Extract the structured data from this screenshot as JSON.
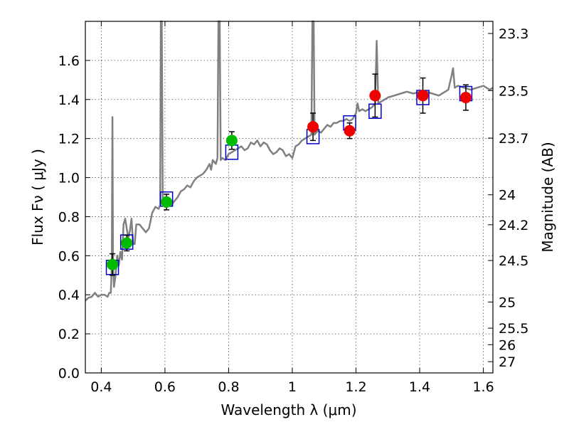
{
  "chart_data": {
    "type": "line",
    "xlabel": "Wavelength  λ (μm)",
    "ylabel": "Flux  Fν  ( μJy )",
    "y2label": "Magnitude (AB)",
    "xlim": [
      0.35,
      1.63
    ],
    "ylim": [
      0.0,
      1.8
    ],
    "grid": true,
    "x_ticks": [
      0.4,
      0.6,
      0.8,
      1.0,
      1.2,
      1.4,
      1.6
    ],
    "x_tick_labels": [
      "0.4",
      "0.6",
      "0.8",
      "1",
      "1.2",
      "1.4",
      "1.6"
    ],
    "y_ticks": [
      0.0,
      0.2,
      0.4,
      0.6,
      0.8,
      1.0,
      1.2,
      1.4,
      1.6
    ],
    "y_tick_labels": [
      "0.0",
      "0.2",
      "0.4",
      "0.6",
      "0.8",
      "1.0",
      "1.2",
      "1.4",
      "1.6"
    ],
    "mag_ticks": [
      "23.3",
      "23.5",
      "23.7",
      "24",
      "24.2",
      "24.5",
      "25",
      "25.5",
      "26",
      "27"
    ],
    "colors": {
      "spectrum": "#808080",
      "model_box": "#0000cc",
      "optical_point": "#00bb00",
      "nir_point": "#ee0000",
      "errorbar": "#000000"
    },
    "spectrum": [
      [
        0.35,
        0.37
      ],
      [
        0.36,
        0.385
      ],
      [
        0.37,
        0.39
      ],
      [
        0.38,
        0.41
      ],
      [
        0.385,
        0.4
      ],
      [
        0.39,
        0.39
      ],
      [
        0.4,
        0.4
      ],
      [
        0.41,
        0.4
      ],
      [
        0.42,
        0.39
      ],
      [
        0.425,
        0.41
      ],
      [
        0.43,
        0.41
      ],
      [
        0.433,
        0.55
      ],
      [
        0.435,
        1.31
      ],
      [
        0.437,
        0.55
      ],
      [
        0.44,
        0.44
      ],
      [
        0.445,
        0.5
      ],
      [
        0.45,
        0.6
      ],
      [
        0.455,
        0.55
      ],
      [
        0.46,
        0.62
      ],
      [
        0.465,
        0.58
      ],
      [
        0.47,
        0.76
      ],
      [
        0.475,
        0.79
      ],
      [
        0.48,
        0.74
      ],
      [
        0.485,
        0.69
      ],
      [
        0.49,
        0.73
      ],
      [
        0.495,
        0.79
      ],
      [
        0.5,
        0.66
      ],
      [
        0.505,
        0.66
      ],
      [
        0.51,
        0.76
      ],
      [
        0.52,
        0.76
      ],
      [
        0.53,
        0.74
      ],
      [
        0.54,
        0.72
      ],
      [
        0.55,
        0.74
      ],
      [
        0.56,
        0.82
      ],
      [
        0.57,
        0.85
      ],
      [
        0.58,
        0.84
      ],
      [
        0.585,
        0.86
      ],
      [
        0.587,
        1.8
      ],
      [
        0.59,
        1.8
      ],
      [
        0.593,
        0.88
      ],
      [
        0.6,
        0.9
      ],
      [
        0.61,
        0.89
      ],
      [
        0.62,
        0.86
      ],
      [
        0.63,
        0.88
      ],
      [
        0.64,
        0.9
      ],
      [
        0.65,
        0.93
      ],
      [
        0.66,
        0.94
      ],
      [
        0.67,
        0.96
      ],
      [
        0.68,
        0.95
      ],
      [
        0.69,
        0.98
      ],
      [
        0.7,
        1.0
      ],
      [
        0.71,
        1.01
      ],
      [
        0.72,
        1.02
      ],
      [
        0.73,
        1.04
      ],
      [
        0.74,
        1.07
      ],
      [
        0.745,
        1.04
      ],
      [
        0.75,
        1.09
      ],
      [
        0.76,
        1.07
      ],
      [
        0.765,
        1.1
      ],
      [
        0.768,
        1.8
      ],
      [
        0.772,
        1.8
      ],
      [
        0.775,
        1.09
      ],
      [
        0.78,
        1.1
      ],
      [
        0.79,
        1.09
      ],
      [
        0.8,
        1.12
      ],
      [
        0.81,
        1.13
      ],
      [
        0.82,
        1.14
      ],
      [
        0.83,
        1.15
      ],
      [
        0.84,
        1.16
      ],
      [
        0.85,
        1.14
      ],
      [
        0.86,
        1.15
      ],
      [
        0.87,
        1.18
      ],
      [
        0.88,
        1.17
      ],
      [
        0.89,
        1.19
      ],
      [
        0.9,
        1.16
      ],
      [
        0.91,
        1.18
      ],
      [
        0.92,
        1.17
      ],
      [
        0.93,
        1.14
      ],
      [
        0.94,
        1.12
      ],
      [
        0.95,
        1.13
      ],
      [
        0.96,
        1.15
      ],
      [
        0.97,
        1.14
      ],
      [
        0.98,
        1.11
      ],
      [
        0.99,
        1.12
      ],
      [
        1.0,
        1.1
      ],
      [
        1.01,
        1.16
      ],
      [
        1.02,
        1.17
      ],
      [
        1.03,
        1.19
      ],
      [
        1.04,
        1.2
      ],
      [
        1.05,
        1.21
      ],
      [
        1.06,
        1.22
      ],
      [
        1.063,
        1.8
      ],
      [
        1.067,
        1.8
      ],
      [
        1.07,
        1.22
      ],
      [
        1.08,
        1.24
      ],
      [
        1.09,
        1.23
      ],
      [
        1.1,
        1.25
      ],
      [
        1.11,
        1.27
      ],
      [
        1.12,
        1.26
      ],
      [
        1.13,
        1.28
      ],
      [
        1.14,
        1.28
      ],
      [
        1.15,
        1.29
      ],
      [
        1.16,
        1.29
      ],
      [
        1.17,
        1.3
      ],
      [
        1.18,
        1.29
      ],
      [
        1.19,
        1.3
      ],
      [
        1.2,
        1.33
      ],
      [
        1.205,
        1.38
      ],
      [
        1.21,
        1.34
      ],
      [
        1.22,
        1.35
      ],
      [
        1.23,
        1.34
      ],
      [
        1.24,
        1.35
      ],
      [
        1.25,
        1.36
      ],
      [
        1.26,
        1.38
      ],
      [
        1.265,
        1.7
      ],
      [
        1.27,
        1.38
      ],
      [
        1.28,
        1.39
      ],
      [
        1.29,
        1.4
      ],
      [
        1.3,
        1.41
      ],
      [
        1.32,
        1.42
      ],
      [
        1.34,
        1.43
      ],
      [
        1.36,
        1.44
      ],
      [
        1.38,
        1.43
      ],
      [
        1.4,
        1.44
      ],
      [
        1.42,
        1.44
      ],
      [
        1.44,
        1.43
      ],
      [
        1.46,
        1.42
      ],
      [
        1.48,
        1.44
      ],
      [
        1.49,
        1.45
      ],
      [
        1.5,
        1.52
      ],
      [
        1.505,
        1.56
      ],
      [
        1.51,
        1.46
      ],
      [
        1.52,
        1.47
      ],
      [
        1.54,
        1.46
      ],
      [
        1.56,
        1.45
      ],
      [
        1.58,
        1.46
      ],
      [
        1.6,
        1.47
      ],
      [
        1.62,
        1.45
      ],
      [
        1.63,
        1.46
      ]
    ],
    "model_boxes": [
      {
        "x": 0.435,
        "y": 0.54
      },
      {
        "x": 0.48,
        "y": 0.67
      },
      {
        "x": 0.605,
        "y": 0.89
      },
      {
        "x": 0.81,
        "y": 1.13
      },
      {
        "x": 1.065,
        "y": 1.21
      },
      {
        "x": 1.18,
        "y": 1.28
      },
      {
        "x": 1.26,
        "y": 1.34
      },
      {
        "x": 1.41,
        "y": 1.41
      },
      {
        "x": 1.545,
        "y": 1.43
      }
    ],
    "optical_points": [
      {
        "x": 0.435,
        "y": 0.555,
        "err": 0.055
      },
      {
        "x": 0.48,
        "y": 0.665,
        "err": 0.04
      },
      {
        "x": 0.605,
        "y": 0.875,
        "err": 0.04
      },
      {
        "x": 0.81,
        "y": 1.19,
        "err": 0.045
      }
    ],
    "nir_points": [
      {
        "x": 1.065,
        "y": 1.26,
        "err": 0.07
      },
      {
        "x": 1.18,
        "y": 1.24,
        "err": 0.04
      },
      {
        "x": 1.26,
        "y": 1.42,
        "err": 0.11
      },
      {
        "x": 1.41,
        "y": 1.42,
        "err": 0.09
      },
      {
        "x": 1.545,
        "y": 1.41,
        "err": 0.065
      }
    ]
  }
}
